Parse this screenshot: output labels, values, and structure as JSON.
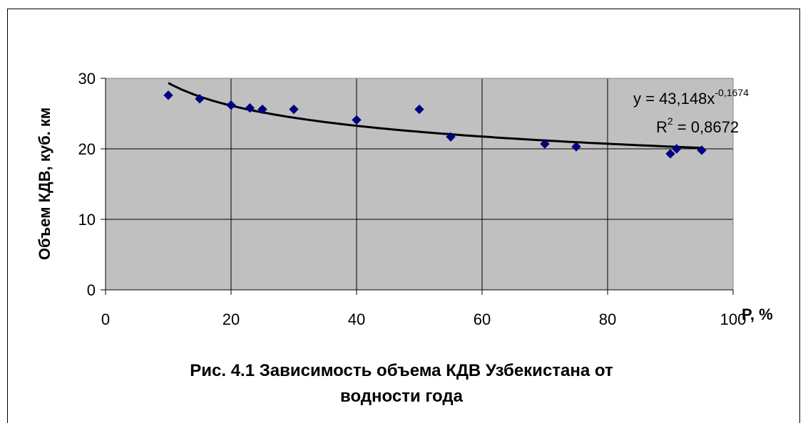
{
  "chart_data": {
    "type": "scatter",
    "xlabel": "P, %",
    "ylabel": "Объем КДВ, куб. км",
    "xlim": [
      0,
      100
    ],
    "ylim": [
      0,
      30
    ],
    "x_ticks": [
      "0",
      "20",
      "40",
      "60",
      "80",
      "100"
    ],
    "y_ticks": [
      "0",
      "10",
      "20",
      "30"
    ],
    "grid": true,
    "plot_background": "#c0c0c0",
    "marker_color": "#000080",
    "trendline_color": "#000000",
    "series": [
      {
        "marker": "diamond",
        "x": [
          10,
          15,
          20,
          23,
          25,
          30,
          40,
          50,
          55,
          70,
          75,
          90,
          91,
          95
        ],
        "y": [
          27.6,
          27.1,
          26.2,
          25.8,
          25.6,
          25.6,
          24.1,
          25.6,
          21.7,
          20.7,
          20.3,
          19.3,
          20.0,
          19.8
        ]
      }
    ],
    "trendline": {
      "type": "power",
      "a": 43.148,
      "b": -0.1674,
      "x_range": [
        10,
        95
      ],
      "equation_text": "y = 43,148x",
      "equation_exponent": "-0,1674",
      "r2_prefix": "R",
      "r2_sup": "2",
      "r2_value": " = 0,8672"
    }
  },
  "caption": {
    "line1": "Рис. 4.1 Зависимость объема КДВ Узбекистана от",
    "line2": "водности года"
  }
}
